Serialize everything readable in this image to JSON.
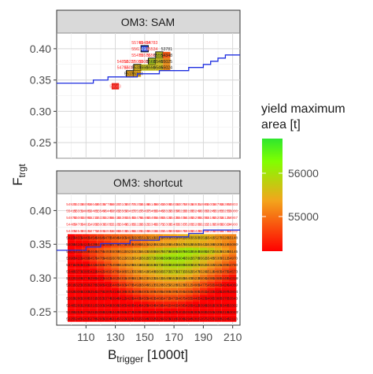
{
  "chart_data": {
    "type": "heatmap",
    "panels": [
      {
        "strip_label": "OM3: SAM",
        "ytick_labels": [
          "0.25",
          "0.30",
          "0.35",
          "0.40"
        ],
        "step_line": [
          [
            90,
            0.345
          ],
          [
            115,
            0.345
          ],
          [
            115,
            0.35
          ],
          [
            125,
            0.35
          ],
          [
            125,
            0.355
          ],
          [
            145,
            0.355
          ],
          [
            145,
            0.36
          ],
          [
            160,
            0.36
          ],
          [
            160,
            0.365
          ],
          [
            180,
            0.365
          ],
          [
            180,
            0.37
          ],
          [
            190,
            0.37
          ],
          [
            190,
            0.375
          ],
          [
            195,
            0.375
          ],
          [
            195,
            0.38
          ],
          [
            200,
            0.38
          ],
          [
            200,
            0.385
          ],
          [
            205,
            0.385
          ],
          [
            205,
            0.39
          ],
          [
            215,
            0.39
          ]
        ],
        "cells": [
          {
            "x": 145,
            "y": 0.41,
            "value": "55749",
            "text_color": "#ff2a2a"
          },
          {
            "x": 150,
            "y": 0.41,
            "value": "55484",
            "text_color": "#ff2a2a"
          },
          {
            "x": 155,
            "y": 0.41,
            "value": "54783",
            "text_color": "#ff2a2a"
          },
          {
            "x": 145,
            "y": 0.4,
            "value": "55636",
            "text_color": "#ff2a2a"
          },
          {
            "x": 150,
            "y": 0.4,
            "value": "56980",
            "fill": "#2244dd",
            "text_color": "#ffffff",
            "border": true
          },
          {
            "x": 155,
            "y": 0.4,
            "value": "55534",
            "text_color": "#ff2a2a"
          },
          {
            "x": 165,
            "y": 0.4,
            "value": "53781",
            "text_color": "#222222"
          },
          {
            "x": 145,
            "y": 0.39,
            "value": "55470",
            "text_color": "#ff2a2a"
          },
          {
            "x": 150,
            "y": 0.39,
            "value": "55576",
            "text_color": "#ff2a2a"
          },
          {
            "x": 155,
            "y": 0.39,
            "value": "55566",
            "text_color": "#ff2a2a"
          },
          {
            "x": 160,
            "y": 0.39,
            "value": "55559",
            "fill": "#b8c020",
            "text_color": "#222222",
            "border": true
          },
          {
            "x": 165,
            "y": 0.39,
            "value": "54348",
            "fill": "#ef5510",
            "text_color": "#222222"
          },
          {
            "x": 135,
            "y": 0.38,
            "value": "54858",
            "text_color": "#ff2a2a"
          },
          {
            "x": 140,
            "y": 0.38,
            "value": "55227",
            "text_color": "#ff2a2a"
          },
          {
            "x": 145,
            "y": 0.38,
            "value": "55008",
            "text_color": "#ff2a2a"
          },
          {
            "x": 150,
            "y": 0.38,
            "value": "55085",
            "text_color": "#ff2a2a"
          },
          {
            "x": 155,
            "y": 0.38,
            "value": "55680",
            "fill": "#a6c81e",
            "text_color": "#222222",
            "border": true
          },
          {
            "x": 160,
            "y": 0.38,
            "value": "55469",
            "fill": "#c3b620",
            "text_color": "#222222"
          },
          {
            "x": 165,
            "y": 0.38,
            "value": "55025",
            "fill": "#e48817",
            "text_color": "#222222"
          },
          {
            "x": 135,
            "y": 0.37,
            "value": "54783",
            "text_color": "#ff2a2a"
          },
          {
            "x": 140,
            "y": 0.37,
            "value": "55026",
            "text_color": "#ff2a2a"
          },
          {
            "x": 145,
            "y": 0.37,
            "value": "55339",
            "fill": "#cfad1c",
            "text_color": "#222222",
            "border": true
          },
          {
            "x": 150,
            "y": 0.37,
            "value": "55508",
            "fill": "#bebb20",
            "text_color": "#222222"
          },
          {
            "x": 155,
            "y": 0.37,
            "value": "55506",
            "fill": "#bebb20",
            "text_color": "#222222"
          },
          {
            "x": 160,
            "y": 0.37,
            "value": "55462",
            "fill": "#c4b51f",
            "text_color": "#222222"
          },
          {
            "x": 165,
            "y": 0.37,
            "value": "55024",
            "fill": "#e48817",
            "text_color": "#222222"
          },
          {
            "x": 140,
            "y": 0.36,
            "value": "55174",
            "fill": "#dc9c1a",
            "text_color": "#222222",
            "border": true
          },
          {
            "x": 145,
            "y": 0.36,
            "value": "55184",
            "fill": "#da9f1b",
            "text_color": "#222222"
          },
          {
            "x": 130,
            "y": 0.34,
            "value": "54043",
            "fill": "#e8241a",
            "text_color": "#ff6a6a"
          }
        ]
      },
      {
        "strip_label": "OM3: shortcut",
        "ytick_labels": [
          "0.25",
          "0.30",
          "0.35",
          "0.40"
        ],
        "step_line": [
          [
            90,
            0.341
          ],
          [
            110,
            0.341
          ],
          [
            110,
            0.346
          ],
          [
            120,
            0.346
          ],
          [
            120,
            0.351
          ],
          [
            140,
            0.351
          ],
          [
            140,
            0.356
          ],
          [
            160,
            0.356
          ],
          [
            160,
            0.361
          ],
          [
            180,
            0.361
          ],
          [
            180,
            0.366
          ],
          [
            190,
            0.366
          ],
          [
            190,
            0.371
          ],
          [
            215,
            0.371
          ]
        ],
        "grid": {
          "x": [
            100,
            105,
            110,
            115,
            120,
            125,
            130,
            135,
            140,
            145,
            150,
            155,
            160,
            165,
            170,
            175,
            180,
            185,
            190,
            195,
            200,
            205,
            210
          ],
          "y": [
            0.41,
            0.4,
            0.39,
            0.38,
            0.37,
            0.36,
            0.35,
            0.34,
            0.33,
            0.32,
            0.31,
            0.3,
            0.29,
            0.28,
            0.27,
            0.26,
            0.25,
            0.24
          ],
          "labels": [
            [
              "54921",
              "55315",
              "56092",
              "56644",
              "56035",
              "57788",
              "56027",
              "53100",
              "56077",
              "55203",
              "55186",
              "55148",
              "56042",
              "55060",
              "55018",
              "53070",
              "54916",
              "54931",
              "54981",
              "55004",
              "54793",
              "55389",
              "53803"
            ],
            [
              "55415",
              "55331",
              "54889",
              "55481",
              "55544",
              "55440",
              "56502",
              "55560",
              "56417",
              "55517",
              "55497",
              "55466",
              "55449",
              "55320",
              "55334",
              "55228",
              "55195",
              "55244",
              "55330",
              "55245",
              "55181",
              "55233",
              "55000"
            ],
            [
              "54870",
              "55061",
              "55090",
              "55212",
              "55331",
              "55288",
              "55410",
              "55381",
              "55540",
              "55476",
              "55460",
              "55465",
              "55480",
              "55420",
              "55439",
              "55408",
              "55340",
              "55299",
              "55250",
              "55160",
              "55203",
              "55129",
              "54957"
            ],
            [
              "54485",
              "54785",
              "54811",
              "54950",
              "55009",
              "55052",
              "55101",
              "55048",
              "55165",
              "55228",
              "55321",
              "55346",
              "55371",
              "55395",
              "55403",
              "55337",
              "55281",
              "55269",
              "55212",
              "55100",
              "55066",
              "55024",
              "54900"
            ],
            [
              "54405",
              "54549",
              "54632",
              "54773",
              "54865",
              "54933",
              "55060",
              "55030",
              "55168",
              "55221",
              "55289",
              "55318",
              "55322",
              "55449",
              "56963",
              "56670",
              "56560",
              "56420",
              "56302",
              "56200",
              "56059",
              "55780",
              "55432"
            ],
            [
              "54158",
              "54330",
              "54400",
              "54540",
              "54640",
              "54769",
              "54840",
              "54900",
              "54934",
              "55057",
              "55104",
              "55194",
              "55214",
              "55302",
              "55320",
              "55422",
              "55501",
              "55509",
              "55518",
              "55413",
              "55275",
              "55206",
              "55148"
            ],
            [
              "54050",
              "54167",
              "54243",
              "54380",
              "54462",
              "54590",
              "54760",
              "54790",
              "54845",
              "54962",
              "55104",
              "55245",
              "55321",
              "55366",
              "55400",
              "55470",
              "55520",
              "55501",
              "55423",
              "55360",
              "55300",
              "55189",
              "55080"
            ],
            [
              "54071",
              "54327",
              "54489",
              "54640",
              "54784",
              "54937",
              "55056",
              "55117",
              "55217",
              "55334",
              "55432",
              "55558",
              "55679",
              "55790",
              "55893",
              "55976",
              "56025",
              "55945",
              "55853",
              "55727",
              "55530",
              "55348",
              "55145"
            ],
            [
              "53905",
              "54192",
              "54396",
              "54578",
              "54788",
              "54914",
              "55074",
              "55224",
              "55326",
              "55416",
              "55612",
              "55728",
              "55880",
              "55980",
              "56023",
              "56040",
              "55912",
              "55780",
              "55623",
              "55469",
              "55308",
              "55123",
              "54970"
            ],
            [
              "53713",
              "53949",
              "54192",
              "54423",
              "54585",
              "54773",
              "54989",
              "55161",
              "55298",
              "55416",
              "55510",
              "55640",
              "55725",
              "55840",
              "55915",
              "55909",
              "55800",
              "55676",
              "55521",
              "55322",
              "55154",
              "54967",
              "54780"
            ],
            [
              "53485",
              "53730",
              "53957",
              "54220",
              "54422",
              "54617",
              "54783",
              "54981",
              "55131",
              "55306",
              "55416",
              "55480",
              "55601",
              "55701",
              "55734",
              "55717",
              "55623",
              "55478",
              "55294",
              "55110",
              "54932",
              "54754",
              "54573"
            ],
            [
              "53221",
              "53499",
              "53746",
              "53993",
              "54209",
              "54430",
              "54621",
              "54810",
              "54990",
              "55120",
              "55231",
              "55333",
              "55432",
              "55496",
              "55530",
              "55508",
              "55405",
              "55239",
              "55043",
              "54863",
              "54681",
              "54497",
              "54318"
            ],
            [
              "53016",
              "53259",
              "53506",
              "53765",
              "53983",
              "54191",
              "54405",
              "54600",
              "54765",
              "54920",
              "55046",
              "55131",
              "55205",
              "55254",
              "55280",
              "55238",
              "55121",
              "54960",
              "54777",
              "54591",
              "54418",
              "54244",
              "54069"
            ],
            [
              "52825",
              "53068",
              "53300",
              "53543",
              "53752",
              "53972",
              "54183",
              "54369",
              "54530",
              "54686",
              "54802",
              "54890",
              "54954",
              "54989",
              "54992",
              "54944",
              "54844",
              "54692",
              "54513",
              "54331",
              "54152",
              "53975",
              "53804"
            ],
            [
              "52638",
              "52862",
              "53082",
              "53319",
              "53531",
              "53746",
              "53940",
              "54122",
              "54284",
              "54430",
              "54550",
              "54633",
              "54691",
              "54715",
              "54718",
              "54671",
              "54557",
              "54407",
              "54234",
              "54061",
              "53885",
              "53709",
              "53543"
            ],
            [
              "52487",
              "52692",
              "52893",
              "53107",
              "53304",
              "53496",
              "53680",
              "53851",
              "54005",
              "54149",
              "54266",
              "54346",
              "54395",
              "54417",
              "54413",
              "54367",
              "54263",
              "54128",
              "53968",
              "53810",
              "53636",
              "53465",
              "53302"
            ],
            [
              "52352",
              "52537",
              "52719",
              "52917",
              "53089",
              "53262",
              "53426",
              "53584",
              "53720",
              "53851",
              "53951",
              "54019",
              "54064",
              "54083",
              "54072",
              "54022",
              "53926",
              "53804",
              "53657",
              "53504",
              "53352",
              "53196",
              "53043"
            ],
            [
              "52257",
              "52451",
              "52633",
              "52789",
              "52930",
              "53048",
              "53142",
              "53228",
              "53286",
              "53327",
              "53340",
              "53329",
              "53294",
              "53238",
              "53163",
              "53066",
              "52949",
              "52817",
              "52677",
              "52531",
              "52385",
              "52243",
              "52113"
            ]
          ]
        }
      }
    ],
    "xlabel": "B",
    "xlabel_subscript": "trigger",
    "xlabel_suffix": " [1000t]",
    "ylabel": "F",
    "ylabel_subscript": "trgt",
    "xlim": [
      90,
      215
    ],
    "ylim_top": [
      0.225,
      0.425
    ],
    "ylim_bottom": [
      0.23,
      0.425
    ],
    "xticks": [
      110,
      130,
      150,
      170,
      190,
      210
    ],
    "xtick_labels": [
      "110",
      "130",
      "150",
      "170",
      "190",
      "210"
    ],
    "legend": {
      "title_line1": "yield maximum",
      "title_line2": "area [t]",
      "tick_labels": [
        "56000",
        "55000"
      ],
      "tick_values": [
        56000,
        55000
      ],
      "range": [
        54200,
        56800
      ],
      "colors": [
        "#ff0000",
        "#f3a51c",
        "#80ff00",
        "#2ee62e"
      ]
    }
  }
}
